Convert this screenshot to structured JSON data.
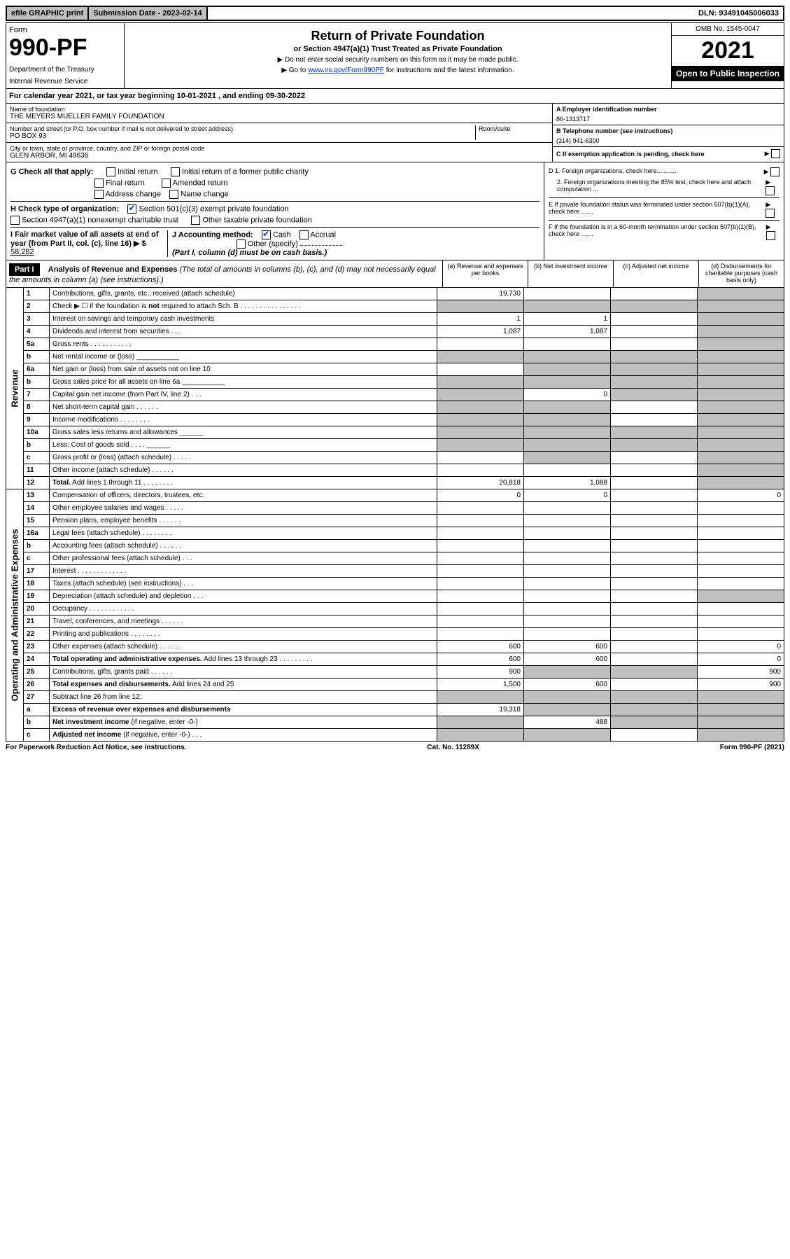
{
  "topbar": {
    "efile": "efile GRAPHIC print",
    "sub_label": "Submission Date - 2023-02-14",
    "dln": "DLN: 93491045006033"
  },
  "header": {
    "form_label": "Form",
    "form_no": "990-PF",
    "dept": "Department of the Treasury",
    "irs": "Internal Revenue Service",
    "title": "Return of Private Foundation",
    "subtitle": "or Section 4947(a)(1) Trust Treated as Private Foundation",
    "note1": "▶ Do not enter social security numbers on this form as it may be made public.",
    "note2_pre": "▶ Go to ",
    "note2_link": "www.irs.gov/Form990PF",
    "note2_post": " for instructions and the latest information.",
    "omb": "OMB No. 1545-0047",
    "year": "2021",
    "open": "Open to Public Inspection"
  },
  "calyear": "For calendar year 2021, or tax year beginning 10-01-2021                          , and ending 09-30-2022",
  "entity": {
    "name_label": "Name of foundation",
    "name": "THE MEYERS MUELLER FAMILY FOUNDATION",
    "addr_label": "Number and street (or P.O. box number if mail is not delivered to street address)",
    "addr": "PO BOX 93",
    "room_label": "Room/suite",
    "city_label": "City or town, state or province, country, and ZIP or foreign postal code",
    "city": "GLEN ARBOR, MI  49636",
    "a_label": "A Employer identification number",
    "a_val": "86-1313717",
    "b_label": "B Telephone number (see instructions)",
    "b_val": "(314) 941-6300",
    "c_label": "C  If exemption application is pending, check here"
  },
  "sectionG": {
    "g_label": "G Check all that apply:",
    "g_opts": [
      "Initial return",
      "Initial return of a former public charity",
      "Final return",
      "Amended return",
      "Address change",
      "Name change"
    ],
    "h_label": "H Check type of organization:",
    "h_opts": [
      "Section 501(c)(3) exempt private foundation",
      "Section 4947(a)(1) nonexempt charitable trust",
      "Other taxable private foundation"
    ],
    "i_label": "I Fair market value of all assets at end of year (from Part II, col. (c), line 16) ▶ $",
    "i_val": "58,282",
    "j_label": "J Accounting method:",
    "j_opts": [
      "Cash",
      "Accrual",
      "Other (specify)"
    ],
    "j_note": "(Part I, column (d) must be on cash basis.)",
    "d1": "D 1. Foreign organizations, check here............",
    "d2": "2. Foreign organizations meeting the 85% test, check here and attach computation ...",
    "e": "E  If private foundation status was terminated under section 507(b)(1)(A), check here .......",
    "f": "F  If the foundation is in a 60-month termination under section 507(b)(1)(B), check here .......",
    "arrow": "▶"
  },
  "part1": {
    "label": "Part I",
    "title": "Analysis of Revenue and Expenses",
    "note": " (The total of amounts in columns (b), (c), and (d) may not necessarily equal the amounts in column (a) (see instructions).)",
    "col_a": "(a)   Revenue and expenses per books",
    "col_b": "(b)   Net investment income",
    "col_c": "(c)   Adjusted net income",
    "col_d": "(d)   Disbursements for charitable purposes (cash basis only)"
  },
  "sidelabels": {
    "rev": "Revenue",
    "exp": "Operating and Administrative Expenses"
  },
  "rows": [
    {
      "n": "1",
      "d": "",
      "a": "19,730",
      "b": "",
      "c": "",
      "greyD": true
    },
    {
      "n": "2",
      "d": "",
      "a": "",
      "b": "",
      "c": "",
      "greyA": true,
      "greyB": true,
      "greyC": true,
      "greyD": true
    },
    {
      "n": "3",
      "d": "",
      "a": "1",
      "b": "1",
      "c": "",
      "greyD": true
    },
    {
      "n": "4",
      "d": "",
      "a": "1,087",
      "b": "1,087",
      "c": "",
      "greyD": true
    },
    {
      "n": "5a",
      "d": "",
      "a": "",
      "b": "",
      "c": "",
      "greyD": true
    },
    {
      "n": "b",
      "d": "",
      "a": "",
      "b": "",
      "c": "",
      "greyA": true,
      "greyB": true,
      "greyC": true,
      "greyD": true
    },
    {
      "n": "6a",
      "d": "",
      "a": "",
      "b": "",
      "c": "",
      "greyB": true,
      "greyC": true,
      "greyD": true
    },
    {
      "n": "b",
      "d": "",
      "a": "",
      "b": "",
      "c": "",
      "greyA": true,
      "greyB": true,
      "greyC": true,
      "greyD": true
    },
    {
      "n": "7",
      "d": "",
      "a": "",
      "b": "0",
      "c": "",
      "greyA": true,
      "greyC": true,
      "greyD": true
    },
    {
      "n": "8",
      "d": "",
      "a": "",
      "b": "",
      "c": "",
      "greyA": true,
      "greyB": true,
      "greyD": true
    },
    {
      "n": "9",
      "d": "",
      "a": "",
      "b": "",
      "c": "",
      "greyA": true,
      "greyB": true,
      "greyD": true
    },
    {
      "n": "10a",
      "d": "",
      "a": "",
      "b": "",
      "c": "",
      "greyA": true,
      "greyB": true,
      "greyC": true,
      "greyD": true
    },
    {
      "n": "b",
      "d": "",
      "a": "",
      "b": "",
      "c": "",
      "greyA": true,
      "greyB": true,
      "greyC": true,
      "greyD": true
    },
    {
      "n": "c",
      "d": "",
      "a": "",
      "b": "",
      "c": "",
      "greyB": true,
      "greyD": true
    },
    {
      "n": "11",
      "d": "",
      "a": "",
      "b": "",
      "c": "",
      "greyD": true
    },
    {
      "n": "12",
      "d": "",
      "a": "20,818",
      "b": "1,088",
      "c": "",
      "greyD": true,
      "bold": true
    }
  ],
  "exp_rows": [
    {
      "n": "13",
      "d": "0",
      "a": "0",
      "b": "0",
      "c": ""
    },
    {
      "n": "14",
      "d": "",
      "a": "",
      "b": "",
      "c": ""
    },
    {
      "n": "15",
      "d": "",
      "a": "",
      "b": "",
      "c": ""
    },
    {
      "n": "16a",
      "d": "",
      "a": "",
      "b": "",
      "c": ""
    },
    {
      "n": "b",
      "d": "",
      "a": "",
      "b": "",
      "c": ""
    },
    {
      "n": "c",
      "d": "",
      "a": "",
      "b": "",
      "c": ""
    },
    {
      "n": "17",
      "d": "",
      "a": "",
      "b": "",
      "c": ""
    },
    {
      "n": "18",
      "d": "",
      "a": "",
      "b": "",
      "c": ""
    },
    {
      "n": "19",
      "d": "",
      "a": "",
      "b": "",
      "c": "",
      "greyD": true
    },
    {
      "n": "20",
      "d": "",
      "a": "",
      "b": "",
      "c": ""
    },
    {
      "n": "21",
      "d": "",
      "a": "",
      "b": "",
      "c": ""
    },
    {
      "n": "22",
      "d": "",
      "a": "",
      "b": "",
      "c": ""
    },
    {
      "n": "23",
      "d": "0",
      "a": "600",
      "b": "600",
      "c": ""
    },
    {
      "n": "24",
      "d": "0",
      "a": "600",
      "b": "600",
      "c": ""
    },
    {
      "n": "25",
      "d": "900",
      "a": "900",
      "b": "",
      "c": "",
      "greyB": true,
      "greyC": true
    },
    {
      "n": "26",
      "d": "900",
      "a": "1,500",
      "b": "600",
      "c": ""
    },
    {
      "n": "27",
      "d": "",
      "a": "",
      "b": "",
      "c": "",
      "greyA": true,
      "greyB": true,
      "greyC": true,
      "greyD": true
    },
    {
      "n": "a",
      "d": "",
      "a": "19,318",
      "b": "",
      "c": "",
      "greyB": true,
      "greyC": true,
      "greyD": true
    },
    {
      "n": "b",
      "d": "",
      "a": "",
      "b": "488",
      "c": "",
      "greyA": true,
      "greyC": true,
      "greyD": true
    },
    {
      "n": "c",
      "d": "",
      "a": "",
      "b": "",
      "c": "",
      "greyA": true,
      "greyB": true,
      "greyD": true
    }
  ],
  "footer": {
    "left": "For Paperwork Reduction Act Notice, see instructions.",
    "center": "Cat. No. 11289X",
    "right": "Form 990-PF (2021)"
  }
}
